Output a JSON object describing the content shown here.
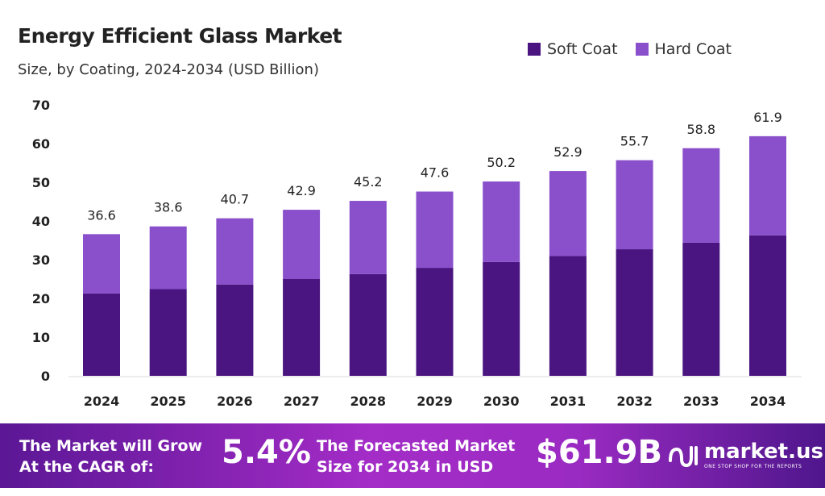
{
  "chart_data": {
    "type": "bar",
    "stacked": true,
    "title": "Energy Efficient Glass Market",
    "subtitle": "Size, by Coating, 2024-2034 (USD Billion)",
    "categories": [
      "2024",
      "2025",
      "2026",
      "2027",
      "2028",
      "2029",
      "2030",
      "2031",
      "2032",
      "2033",
      "2034"
    ],
    "series": [
      {
        "name": "Soft Coat",
        "color": "#4a1580",
        "values": [
          21.3,
          22.4,
          23.6,
          25.0,
          26.3,
          27.9,
          29.4,
          31.0,
          32.7,
          34.4,
          36.3
        ]
      },
      {
        "name": "Hard Coat",
        "color": "#8a50cc",
        "values": [
          15.3,
          16.2,
          17.1,
          17.9,
          18.9,
          19.7,
          20.8,
          21.9,
          23.0,
          24.4,
          25.6
        ]
      }
    ],
    "totals": [
      "36.6",
      "38.6",
      "40.7",
      "42.9",
      "45.2",
      "47.6",
      "50.2",
      "52.9",
      "55.7",
      "58.8",
      "61.9"
    ],
    "ylim": [
      0,
      70
    ],
    "yticks": [
      "0",
      "10",
      "20",
      "30",
      "40",
      "50",
      "60",
      "70"
    ],
    "grid": false,
    "legend": "top-right"
  },
  "banner": {
    "cagr_text_1": "The Market will Grow",
    "cagr_text_2": "At the CAGR of:",
    "cagr_value": "5.4%",
    "forecast_text_1": "The Forecasted Market",
    "forecast_text_2": "Size for 2034 in USD",
    "forecast_value": "$61.9B",
    "logo_text": "market.us",
    "logo_tagline": "ONE STOP SHOP FOR THE REPORTS"
  }
}
